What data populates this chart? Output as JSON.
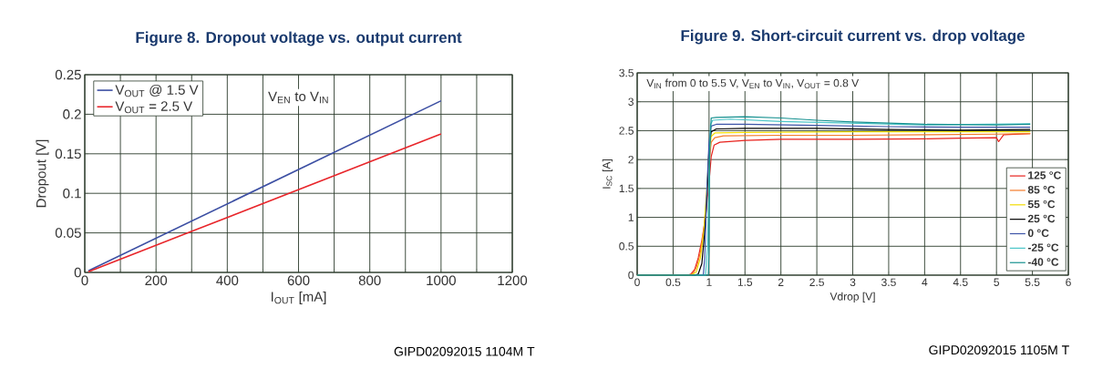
{
  "chart_data": [
    {
      "type": "line",
      "title": "Figure 8. Dropout voltage vs. output current",
      "xlabel": "I$_{OUT}$ [mA]",
      "ylabel": "Dropout [V]",
      "xlim": [
        0,
        1200
      ],
      "ylim": [
        0,
        0.25
      ],
      "xticks": [
        0,
        {
          "value": 100,
          "label": null
        },
        200,
        {
          "value": 300,
          "label": null
        },
        400,
        {
          "value": 500,
          "label": null
        },
        600,
        {
          "value": 700,
          "label": null
        },
        800,
        {
          "value": 900,
          "label": null
        },
        1000,
        {
          "value": 1100,
          "label": null
        },
        1200
      ],
      "yticks": [
        0,
        0.05,
        0.1,
        0.15,
        0.2,
        0.25
      ],
      "grid": true,
      "legend": "top left",
      "annotations": [
        "V$_{EN}$ to V$_{IN}$",
        "GIPD02092015    1104M T"
      ],
      "series": [
        {
          "name": "V$_{OUT}$ @ 1.5 V",
          "color": "#3c4fa3",
          "x": [
            10,
            1000
          ],
          "values": [
            0.002,
            0.217
          ]
        },
        {
          "name": "V$_{OUT}$ = 2.5 V",
          "color": "#e8252a",
          "x": [
            10,
            1000
          ],
          "values": [
            0.001,
            0.175
          ]
        }
      ]
    },
    {
      "type": "line",
      "title": "Figure 9. Short-circuit current vs. drop voltage",
      "xlabel": "Vdrop [V]",
      "ylabel": "I$_{SC}$ [A]",
      "xlim": [
        0,
        6
      ],
      "ylim": [
        0,
        3.5
      ],
      "xticks": [
        0,
        0.5,
        1,
        1.5,
        2,
        2.5,
        3,
        3.5,
        4,
        4.5,
        5,
        5.5,
        6
      ],
      "yticks": [
        0,
        0.5,
        1,
        1.5,
        2,
        2.5,
        3,
        3.5
      ],
      "grid": true,
      "legend": "bottom right",
      "annotations": [
        "V$_{IN}$ from 0 to 5.5 V, V$_{EN}$ to V$_{IN}$, V$_{OUT}$ = 0.8 V",
        "GIPD02092015    1105M T"
      ],
      "series": [
        {
          "name": "125 °C",
          "color": "#e8211c",
          "x": [
            0,
            0.7,
            0.75,
            0.8,
            0.85,
            0.9,
            0.95,
            1.0,
            1.03,
            1.07,
            1.15,
            1.5,
            2,
            3,
            4,
            4.5,
            5,
            5.03,
            5.1,
            5.47
          ],
          "values": [
            0,
            0,
            0.02,
            0.1,
            0.3,
            0.6,
            1.0,
            1.6,
            2.05,
            2.25,
            2.3,
            2.33,
            2.35,
            2.35,
            2.36,
            2.37,
            2.38,
            2.31,
            2.43,
            2.45
          ]
        },
        {
          "name": "85 °C",
          "color": "#f47a2a",
          "x": [
            0,
            0.72,
            0.78,
            0.83,
            0.88,
            0.93,
            0.97,
            1.0,
            1.03,
            1.08,
            1.2,
            2,
            3,
            4,
            5,
            5.47
          ],
          "values": [
            0,
            0,
            0.03,
            0.15,
            0.4,
            0.8,
            1.4,
            1.9,
            2.3,
            2.38,
            2.41,
            2.42,
            2.42,
            2.43,
            2.44,
            2.45
          ]
        },
        {
          "name": "55 °C",
          "color": "#f2dc00",
          "x": [
            0,
            0.75,
            0.82,
            0.88,
            0.93,
            0.97,
            1.0,
            1.03,
            1.08,
            1.5,
            3,
            5.47
          ],
          "values": [
            0,
            0,
            0.05,
            0.3,
            0.8,
            1.5,
            2.1,
            2.4,
            2.46,
            2.47,
            2.48,
            2.48
          ]
        },
        {
          "name": "25 °C",
          "color": "#000000",
          "x": [
            0,
            0.8,
            0.85,
            0.9,
            0.95,
            0.98,
            1.0,
            1.03,
            1.1,
            1.5,
            2.5,
            3.5,
            4.5,
            5.47
          ],
          "values": [
            0,
            0,
            0.02,
            0.2,
            0.9,
            1.6,
            2.2,
            2.48,
            2.53,
            2.54,
            2.54,
            2.52,
            2.51,
            2.52
          ]
        },
        {
          "name": "0 °C",
          "color": "#3d55a8",
          "x": [
            0.85,
            0.92,
            0.94,
            0.97,
            1.0,
            1.03,
            1.1,
            1.5,
            2.5,
            3.5,
            4.5,
            5.47
          ],
          "values": [
            0,
            0,
            0.3,
            1.5,
            2.3,
            2.58,
            2.61,
            2.61,
            2.59,
            2.57,
            2.56,
            2.56
          ]
        },
        {
          "name": "-25 °C",
          "color": "#4cc5c8",
          "x": [
            0,
            0.9,
            0.95,
            0.98,
            1.0,
            1.02,
            1.05,
            1.3,
            2,
            3,
            4,
            5.47
          ],
          "values": [
            0,
            0,
            0,
            0.5,
            1.8,
            2.6,
            2.68,
            2.7,
            2.66,
            2.63,
            2.6,
            2.62
          ]
        },
        {
          "name": "-40 °C",
          "color": "#15908f",
          "x": [
            0,
            0.95,
            0.99,
            1.0,
            1.01,
            1.03,
            1.1,
            1.5,
            2,
            2.5,
            3,
            4,
            5,
            5.47
          ],
          "values": [
            0,
            0,
            0,
            0.5,
            2.2,
            2.72,
            2.73,
            2.74,
            2.72,
            2.68,
            2.65,
            2.61,
            2.6,
            2.61
          ]
        }
      ]
    }
  ]
}
